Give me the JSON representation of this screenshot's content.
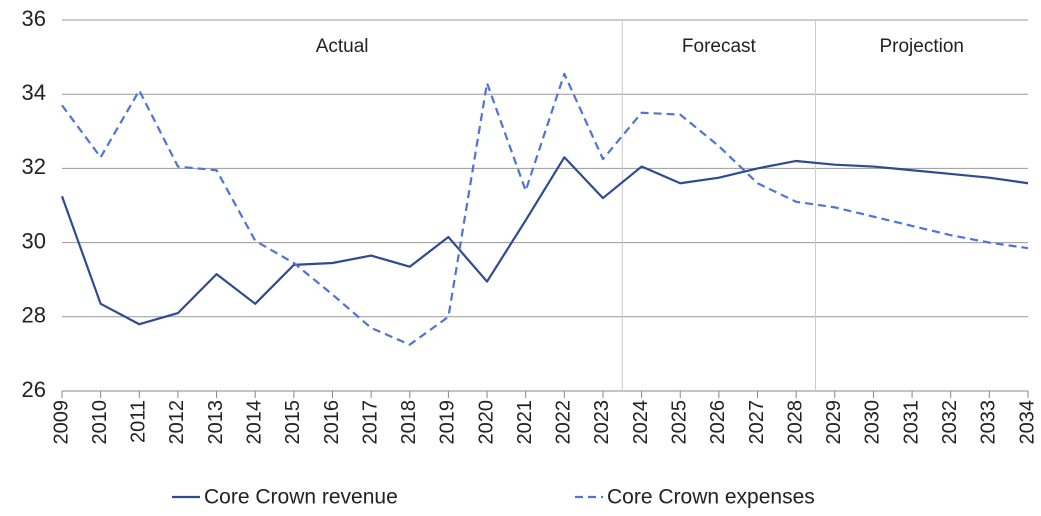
{
  "chart_data": {
    "type": "line",
    "x": [
      2009,
      2010,
      2011,
      2012,
      2013,
      2014,
      2015,
      2016,
      2017,
      2018,
      2019,
      2020,
      2021,
      2022,
      2023,
      2024,
      2025,
      2026,
      2027,
      2028,
      2029,
      2030,
      2031,
      2032,
      2033,
      2034
    ],
    "series": [
      {
        "name": "Core Crown revenue",
        "color": "#2f4a8f",
        "dash": false,
        "values": [
          31.25,
          28.35,
          27.8,
          28.1,
          29.15,
          28.35,
          29.4,
          29.45,
          29.65,
          29.35,
          30.15,
          28.95,
          30.6,
          32.3,
          31.2,
          32.05,
          31.6,
          31.75,
          32.0,
          32.2,
          32.1,
          32.05,
          31.95,
          31.85,
          31.75,
          31.6
        ]
      },
      {
        "name": "Core Crown expenses",
        "color": "#4f74d6",
        "dash": true,
        "values": [
          33.7,
          32.3,
          34.1,
          32.05,
          31.95,
          30.05,
          29.45,
          28.6,
          27.7,
          27.25,
          28.0,
          34.3,
          31.4,
          34.55,
          32.25,
          33.5,
          33.45,
          32.6,
          31.6,
          31.1,
          30.95,
          30.7,
          30.45,
          30.2,
          30.0,
          29.85
        ]
      }
    ],
    "regions": [
      "Actual",
      "Forecast",
      "Projection"
    ],
    "dividers": [
      2023.5,
      2028.5
    ],
    "xlim": [
      2009,
      2034
    ],
    "xticks": [
      2009,
      2010,
      2011,
      2012,
      2013,
      2014,
      2015,
      2016,
      2017,
      2018,
      2019,
      2020,
      2021,
      2022,
      2023,
      2024,
      2025,
      2026,
      2027,
      2028,
      2029,
      2030,
      2031,
      2032,
      2033,
      2034
    ],
    "ylim": [
      26,
      36
    ],
    "yticks": [
      26,
      28,
      30,
      32,
      34,
      36
    ],
    "grid": true,
    "legend": "bottom"
  }
}
